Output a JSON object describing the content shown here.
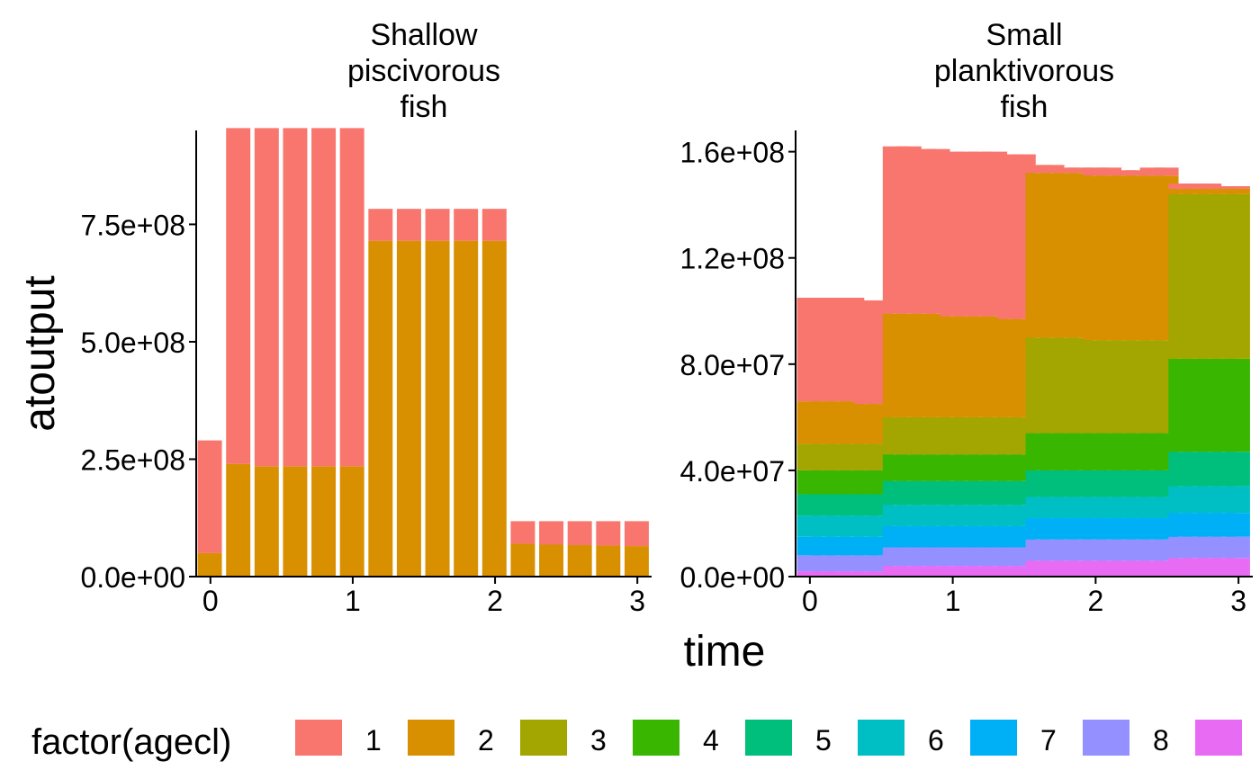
{
  "axis": {
    "xlabel": "time",
    "ylabel": "atoutput"
  },
  "legend": {
    "title": "factor(agecl)",
    "items": [
      {
        "label": "1",
        "color": "#F8766D"
      },
      {
        "label": "2",
        "color": "#D89000"
      },
      {
        "label": "3",
        "color": "#A3A500"
      },
      {
        "label": "4",
        "color": "#39B600"
      },
      {
        "label": "5",
        "color": "#00BF7D"
      },
      {
        "label": "6",
        "color": "#00BFC4"
      },
      {
        "label": "7",
        "color": "#00B0F6"
      },
      {
        "label": "8",
        "color": "#9590FF"
      },
      {
        "label": "",
        "color": "#E76BF3"
      }
    ]
  },
  "chart_data": [
    {
      "type": "bar",
      "stacked": true,
      "title": "Shallow\npiscivorous\nfish",
      "xlabel": "time",
      "ylabel": "atoutput",
      "x": [
        0,
        0.2,
        0.4,
        0.6,
        0.8,
        1.0,
        1.2,
        1.4,
        1.6,
        1.8,
        2.0,
        2.2,
        2.4,
        2.6,
        2.8,
        3.0
      ],
      "bar_width": 0.18,
      "xlim": [
        -0.1,
        3.1
      ],
      "ylim": [
        0,
        950000000
      ],
      "xticks": [
        0,
        1,
        2,
        3
      ],
      "yticks": [
        0,
        250000000,
        500000000,
        750000000
      ],
      "ytick_labels": [
        "0.0e+00",
        "2.5e+08",
        "5.0e+08",
        "7.5e+08"
      ],
      "series": [
        {
          "agecl": "2",
          "values": [
            50000000,
            240000000,
            235000000,
            235000000,
            235000000,
            235000000,
            715000000,
            715000000,
            715000000,
            715000000,
            715000000,
            70000000,
            68000000,
            67000000,
            66000000,
            65000000
          ]
        },
        {
          "agecl": "1",
          "values": [
            240000000,
            715000000,
            720000000,
            720000000,
            720000000,
            720000000,
            68000000,
            68000000,
            68000000,
            68000000,
            68000000,
            48000000,
            50000000,
            51000000,
            52000000,
            53000000
          ]
        }
      ]
    },
    {
      "type": "bar",
      "stacked": true,
      "title": "Small\nplanktivorous\nfish",
      "xlabel": "time",
      "ylabel": "atoutput",
      "x": [
        0,
        0.1,
        0.2,
        0.3,
        0.4,
        0.5,
        0.6,
        0.7,
        0.8,
        0.9,
        1.0,
        1.1,
        1.2,
        1.3,
        1.4,
        1.5,
        1.6,
        1.7,
        1.8,
        1.9,
        2.0,
        2.1,
        2.2,
        2.3,
        2.4,
        2.5,
        2.6,
        2.7,
        2.8,
        2.9,
        3.0
      ],
      "bar_width": 0.18,
      "xlim": [
        -0.1,
        3.1
      ],
      "ylim": [
        0,
        168000000
      ],
      "xticks": [
        0,
        1,
        2,
        3
      ],
      "yticks": [
        0,
        40000000,
        80000000,
        120000000,
        160000000
      ],
      "ytick_labels": [
        "0.0e+00",
        "4.0e+07",
        "8.0e+07",
        "1.2e+08",
        "1.6e+08"
      ],
      "series": [
        {
          "agecl": "9",
          "values": [
            2000000,
            2000000,
            2000000,
            2000000,
            2000000,
            2000000,
            4000000,
            4000000,
            4000000,
            4000000,
            4000000,
            4000000,
            4000000,
            4000000,
            4000000,
            4000000,
            6000000,
            6000000,
            6000000,
            6000000,
            6000000,
            6000000,
            6000000,
            6000000,
            6000000,
            6000000,
            7000000,
            7000000,
            7000000,
            7000000,
            7000000
          ]
        },
        {
          "agecl": "8",
          "values": [
            6000000,
            6000000,
            6000000,
            6000000,
            6000000,
            6000000,
            7000000,
            7000000,
            7000000,
            7000000,
            7000000,
            7000000,
            7000000,
            7000000,
            7000000,
            7000000,
            8000000,
            8000000,
            8000000,
            8000000,
            8000000,
            8000000,
            8000000,
            8000000,
            8000000,
            8000000,
            8000000,
            8000000,
            8000000,
            8000000,
            8000000
          ]
        },
        {
          "agecl": "7",
          "values": [
            7000000,
            7000000,
            7000000,
            7000000,
            7000000,
            7000000,
            8000000,
            8000000,
            8000000,
            8000000,
            8000000,
            8000000,
            8000000,
            8000000,
            8000000,
            8000000,
            8000000,
            8000000,
            8000000,
            8000000,
            8000000,
            8000000,
            8000000,
            8000000,
            8000000,
            8000000,
            9000000,
            9000000,
            9000000,
            9000000,
            9000000
          ]
        },
        {
          "agecl": "6",
          "values": [
            8000000,
            8000000,
            8000000,
            8000000,
            8000000,
            8000000,
            8000000,
            8000000,
            8000000,
            8000000,
            8000000,
            8000000,
            8000000,
            8000000,
            8000000,
            8000000,
            8000000,
            8000000,
            8000000,
            8000000,
            8000000,
            8000000,
            8000000,
            8000000,
            8000000,
            8000000,
            10000000,
            10000000,
            10000000,
            10000000,
            10000000
          ]
        },
        {
          "agecl": "5",
          "values": [
            8000000,
            8000000,
            8000000,
            8000000,
            8000000,
            8000000,
            9000000,
            9000000,
            9000000,
            9000000,
            9000000,
            9000000,
            9000000,
            9000000,
            9000000,
            9000000,
            10000000,
            10000000,
            10000000,
            10000000,
            10000000,
            10000000,
            10000000,
            10000000,
            10000000,
            10000000,
            13000000,
            13000000,
            13000000,
            13000000,
            13000000
          ]
        },
        {
          "agecl": "4",
          "values": [
            9000000,
            9000000,
            9000000,
            9000000,
            9000000,
            9000000,
            10000000,
            10000000,
            10000000,
            10000000,
            10000000,
            10000000,
            10000000,
            10000000,
            10000000,
            10000000,
            14000000,
            14000000,
            14000000,
            14000000,
            14000000,
            14000000,
            14000000,
            14000000,
            14000000,
            14000000,
            35000000,
            35000000,
            35000000,
            35000000,
            35000000
          ]
        },
        {
          "agecl": "3",
          "values": [
            10000000,
            10000000,
            10000000,
            10000000,
            10000000,
            10000000,
            14000000,
            14000000,
            14000000,
            14000000,
            14000000,
            14000000,
            14000000,
            14000000,
            14000000,
            14000000,
            36000000,
            36000000,
            36000000,
            36000000,
            35000000,
            35000000,
            35000000,
            35000000,
            35000000,
            35000000,
            62000000,
            62000000,
            62000000,
            62000000,
            62000000
          ]
        },
        {
          "agecl": "2",
          "values": [
            16000000,
            16000000,
            16000000,
            16000000,
            15000000,
            15000000,
            39000000,
            39000000,
            39000000,
            39000000,
            38000000,
            38000000,
            38000000,
            38000000,
            37000000,
            37000000,
            62000000,
            62000000,
            62000000,
            62000000,
            62000000,
            62000000,
            62000000,
            62000000,
            62000000,
            62000000,
            2000000,
            2000000,
            2000000,
            2000000,
            2000000
          ]
        },
        {
          "agecl": "1",
          "values": [
            39000000,
            39000000,
            39000000,
            39000000,
            39000000,
            39000000,
            63000000,
            63000000,
            62000000,
            62000000,
            62000000,
            62000000,
            62000000,
            62000000,
            62000000,
            62000000,
            3000000,
            3000000,
            2000000,
            2000000,
            3000000,
            3000000,
            2000000,
            2000000,
            3000000,
            3000000,
            2000000,
            2000000,
            2000000,
            1000000,
            1000000
          ]
        }
      ]
    }
  ]
}
